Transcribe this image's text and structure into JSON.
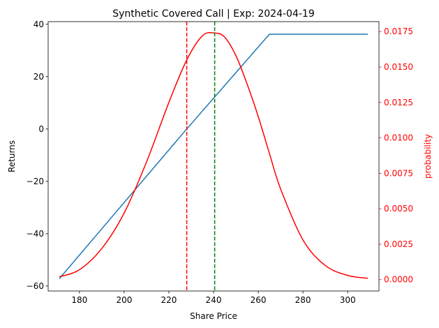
{
  "chart_data": {
    "type": "line",
    "title": "Synthetic Covered Call | Exp: 2024-04-19",
    "xlabel": "Share Price",
    "ylabel": "Returns",
    "y2label": "probability",
    "xlim": [
      166,
      314
    ],
    "ylim": [
      -61.9,
      41.0
    ],
    "y2lim": [
      -0.0008,
      0.0182
    ],
    "x_ticks": [
      180,
      200,
      220,
      240,
      260,
      280,
      300
    ],
    "y_ticks": [
      -60,
      -40,
      -20,
      0,
      20,
      40
    ],
    "y_tick_labels": [
      "−60",
      "−40",
      "−20",
      "0",
      "20",
      "40"
    ],
    "y2_ticks": [
      0.0,
      0.0025,
      0.005,
      0.0075,
      0.01,
      0.0125,
      0.015,
      0.0175
    ],
    "y2_tick_labels": [
      "0.0000",
      "0.0025",
      "0.0050",
      "0.0075",
      "0.0100",
      "0.0125",
      "0.0150",
      "0.0175"
    ],
    "series": [
      {
        "axis": "left",
        "color": "#1f77b4",
        "x": [
          171,
          228,
          265,
          309
        ],
        "y": [
          -57.2,
          0,
          36.2,
          36.2
        ]
      },
      {
        "axis": "right",
        "color": "#ff0000",
        "x": [
          171,
          180,
          190,
          200,
          210,
          220,
          228,
          235,
          240.5,
          245,
          250,
          255,
          260,
          265,
          270,
          280,
          290,
          300,
          309
        ],
        "y": [
          0.0002,
          0.0007,
          0.0022,
          0.0047,
          0.0083,
          0.0125,
          0.0155,
          0.0172,
          0.0174,
          0.0171,
          0.0158,
          0.0138,
          0.0115,
          0.0089,
          0.0064,
          0.0028,
          0.001,
          0.0003,
          0.0001
        ]
      }
    ],
    "vlines": [
      {
        "x": 228,
        "color": "#ff0000",
        "style": "dashed"
      },
      {
        "x": 240.5,
        "color": "#008000",
        "style": "dashed"
      }
    ],
    "grid": false,
    "y2_color": "#ff0000"
  }
}
